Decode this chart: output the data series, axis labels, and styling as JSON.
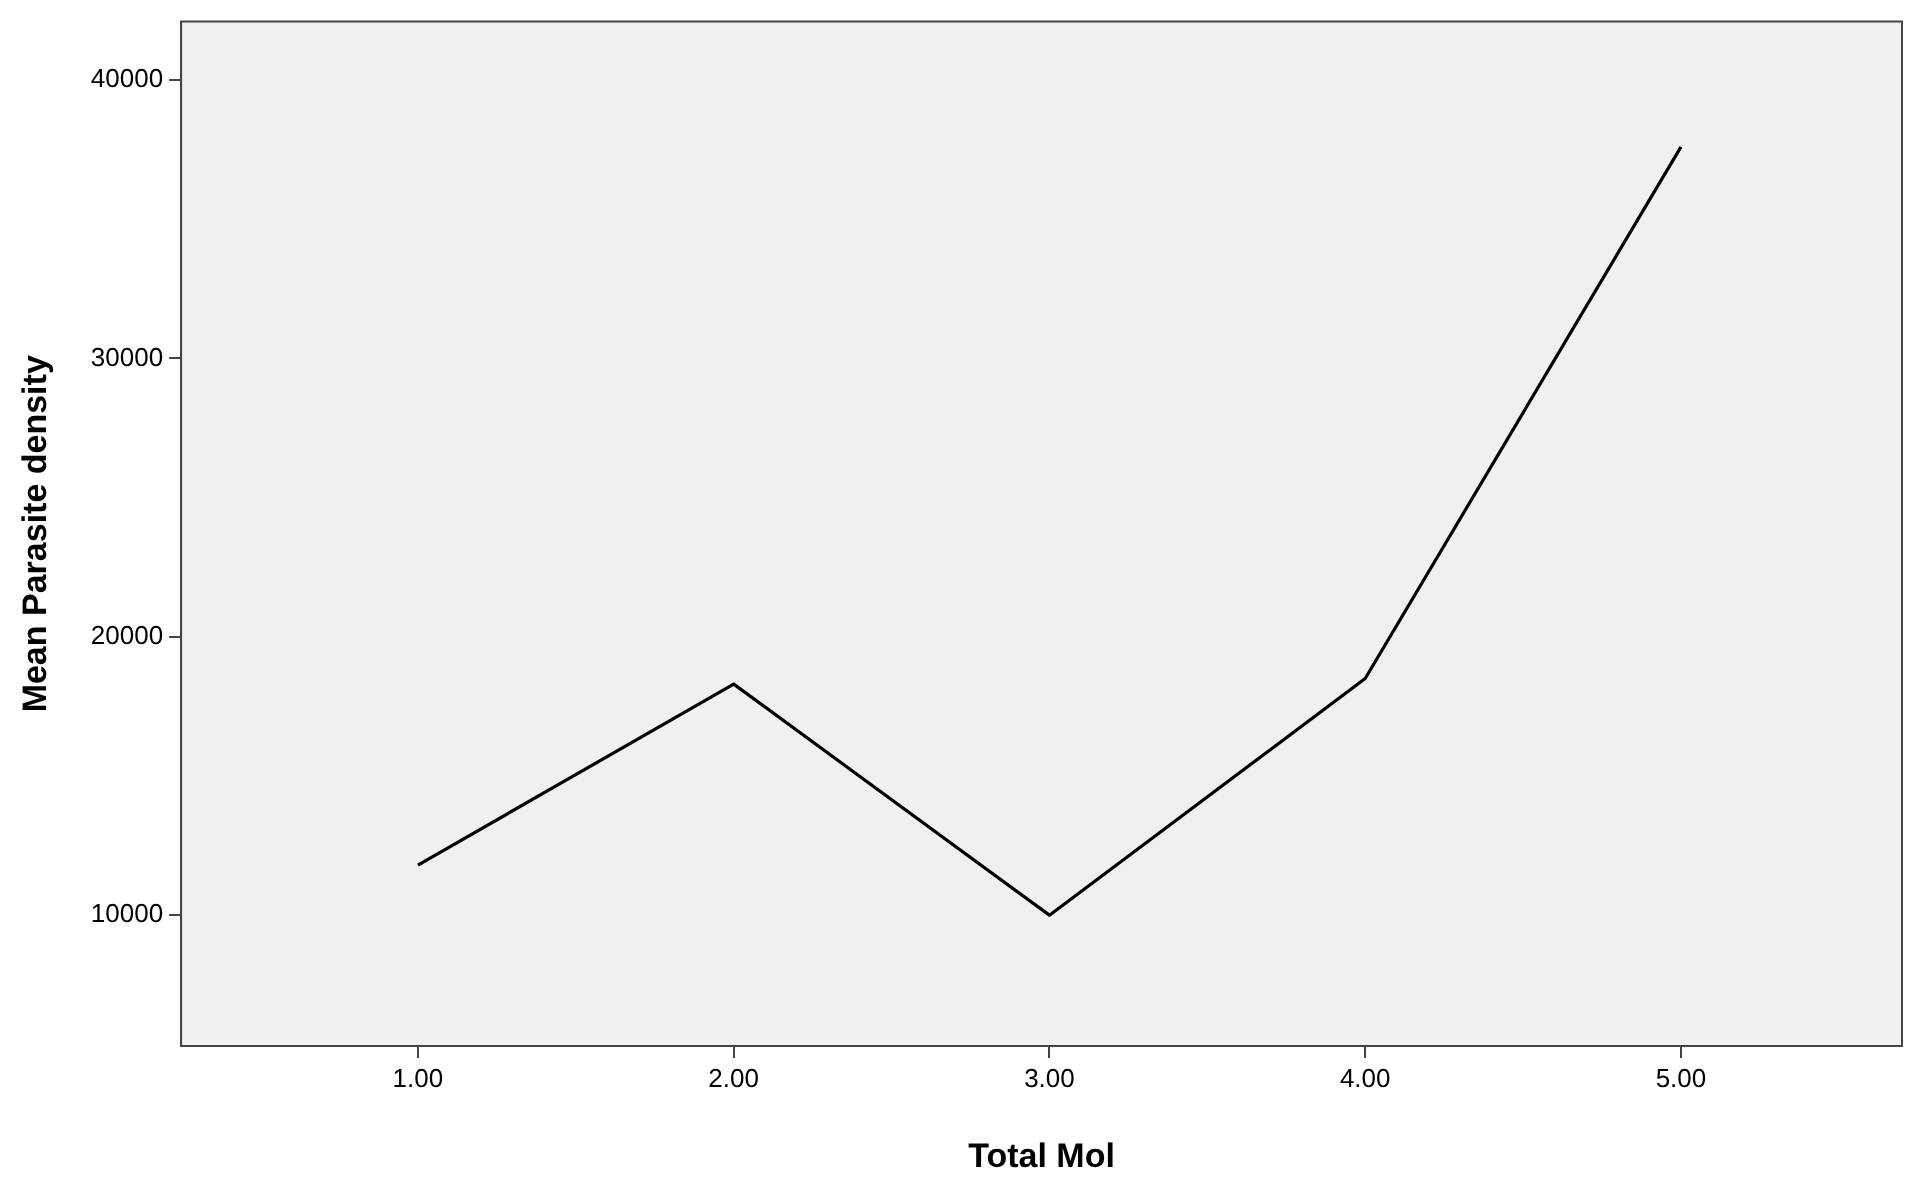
{
  "chart_data": {
    "type": "line",
    "xlabel": "Total Mol",
    "ylabel": "Mean Parasite density",
    "x": [
      1,
      2,
      3,
      4,
      5
    ],
    "series": [
      {
        "color": "#000000",
        "values": [
          11800,
          18300,
          10000,
          18500,
          37600
        ]
      }
    ],
    "xlim": [
      0.25,
      5.7
    ],
    "xticks": [
      {
        "value": 1,
        "label": "1.00"
      },
      {
        "value": 2,
        "label": "2.00"
      },
      {
        "value": 3,
        "label": "3.00"
      },
      {
        "value": 4,
        "label": "4.00"
      },
      {
        "value": 5,
        "label": "5.00"
      }
    ],
    "ylim": [
      5300,
      42100
    ],
    "yticks": [
      10000,
      20000,
      30000,
      40000
    ],
    "grid": false,
    "legend": false,
    "marker": "none",
    "line_style": "solid"
  }
}
